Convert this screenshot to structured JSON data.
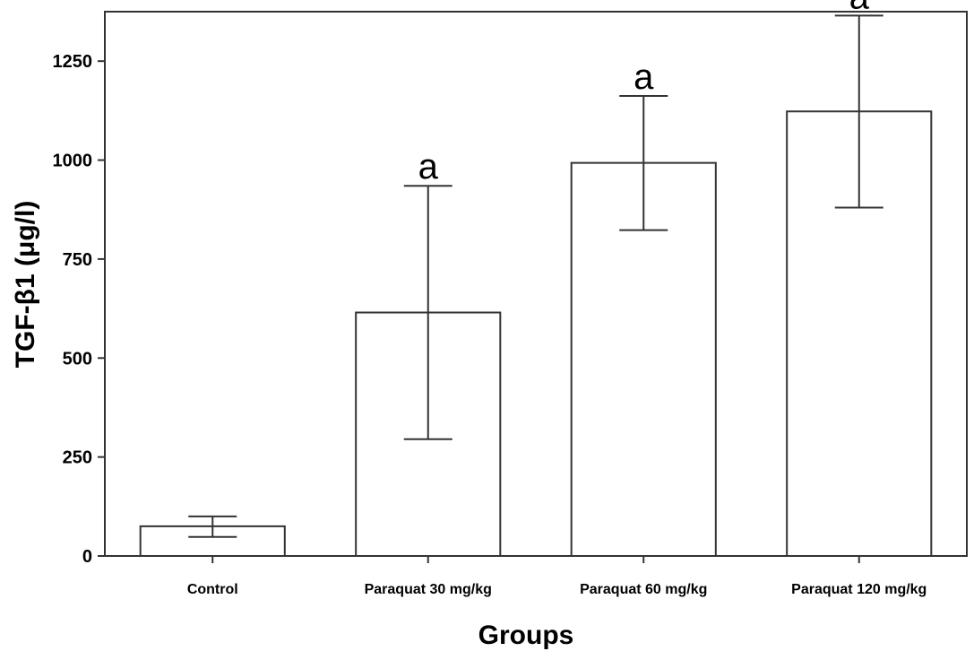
{
  "chart_data": {
    "type": "bar",
    "title": "",
    "xlabel": "Groups",
    "ylabel": "TGF-β1 (μg/l)",
    "ylim": [
      0,
      1375
    ],
    "yticks": [
      0,
      250,
      500,
      750,
      1000,
      1250
    ],
    "grid": false,
    "categories": [
      "Control",
      "Paraquat 30 mg/kg",
      "Paraquat 60 mg/kg",
      "Paraquat 120 mg/kg"
    ],
    "values": [
      75,
      615,
      993,
      1123
    ],
    "error_low": [
      48,
      295,
      823,
      880
    ],
    "error_high": [
      100,
      935,
      1162,
      1365
    ],
    "annotations": [
      "",
      "a",
      "a",
      "a"
    ],
    "colors": {
      "bar_fill": "#ffffff",
      "bar_stroke": "#333333",
      "axis": "#333333"
    }
  }
}
